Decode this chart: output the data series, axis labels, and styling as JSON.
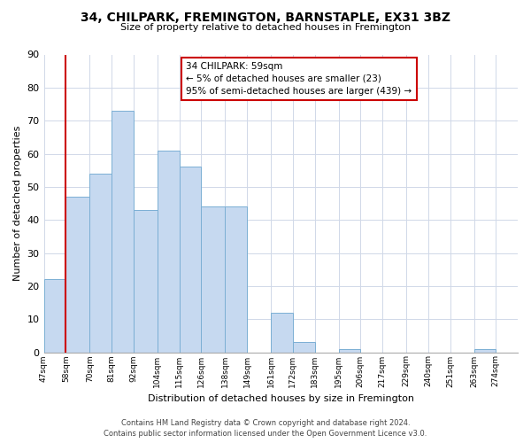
{
  "title": "34, CHILPARK, FREMINGTON, BARNSTAPLE, EX31 3BZ",
  "subtitle": "Size of property relative to detached houses in Fremington",
  "xlabel": "Distribution of detached houses by size in Fremington",
  "ylabel": "Number of detached properties",
  "bin_edges": [
    47,
    58,
    70,
    81,
    92,
    104,
    115,
    126,
    138,
    149,
    161,
    172,
    183,
    195,
    206,
    217,
    229,
    240,
    251,
    263,
    274,
    285
  ],
  "bin_labels": [
    "47sqm",
    "58sqm",
    "70sqm",
    "81sqm",
    "92sqm",
    "104sqm",
    "115sqm",
    "126sqm",
    "138sqm",
    "149sqm",
    "161sqm",
    "172sqm",
    "183sqm",
    "195sqm",
    "206sqm",
    "217sqm",
    "229sqm",
    "240sqm",
    "251sqm",
    "263sqm",
    "274sqm"
  ],
  "bar_values": [
    22,
    47,
    54,
    73,
    43,
    61,
    56,
    44,
    44,
    0,
    12,
    3,
    0,
    1,
    0,
    0,
    0,
    0,
    0,
    1,
    0
  ],
  "bar_color": "#c6d9f0",
  "bar_edge_color": "#7bafd4",
  "vline_x": 58,
  "vline_color": "#cc0000",
  "ylim": [
    0,
    90
  ],
  "yticks": [
    0,
    10,
    20,
    30,
    40,
    50,
    60,
    70,
    80,
    90
  ],
  "annotation_title": "34 CHILPARK: 59sqm",
  "annotation_line1": "← 5% of detached houses are smaller (23)",
  "annotation_line2": "95% of semi-detached houses are larger (439) →",
  "annotation_box_color": "#ffffff",
  "annotation_box_edge": "#cc0000",
  "footer_line1": "Contains HM Land Registry data © Crown copyright and database right 2024.",
  "footer_line2": "Contains public sector information licensed under the Open Government Licence v3.0.",
  "background_color": "#ffffff",
  "grid_color": "#d0d8e8"
}
